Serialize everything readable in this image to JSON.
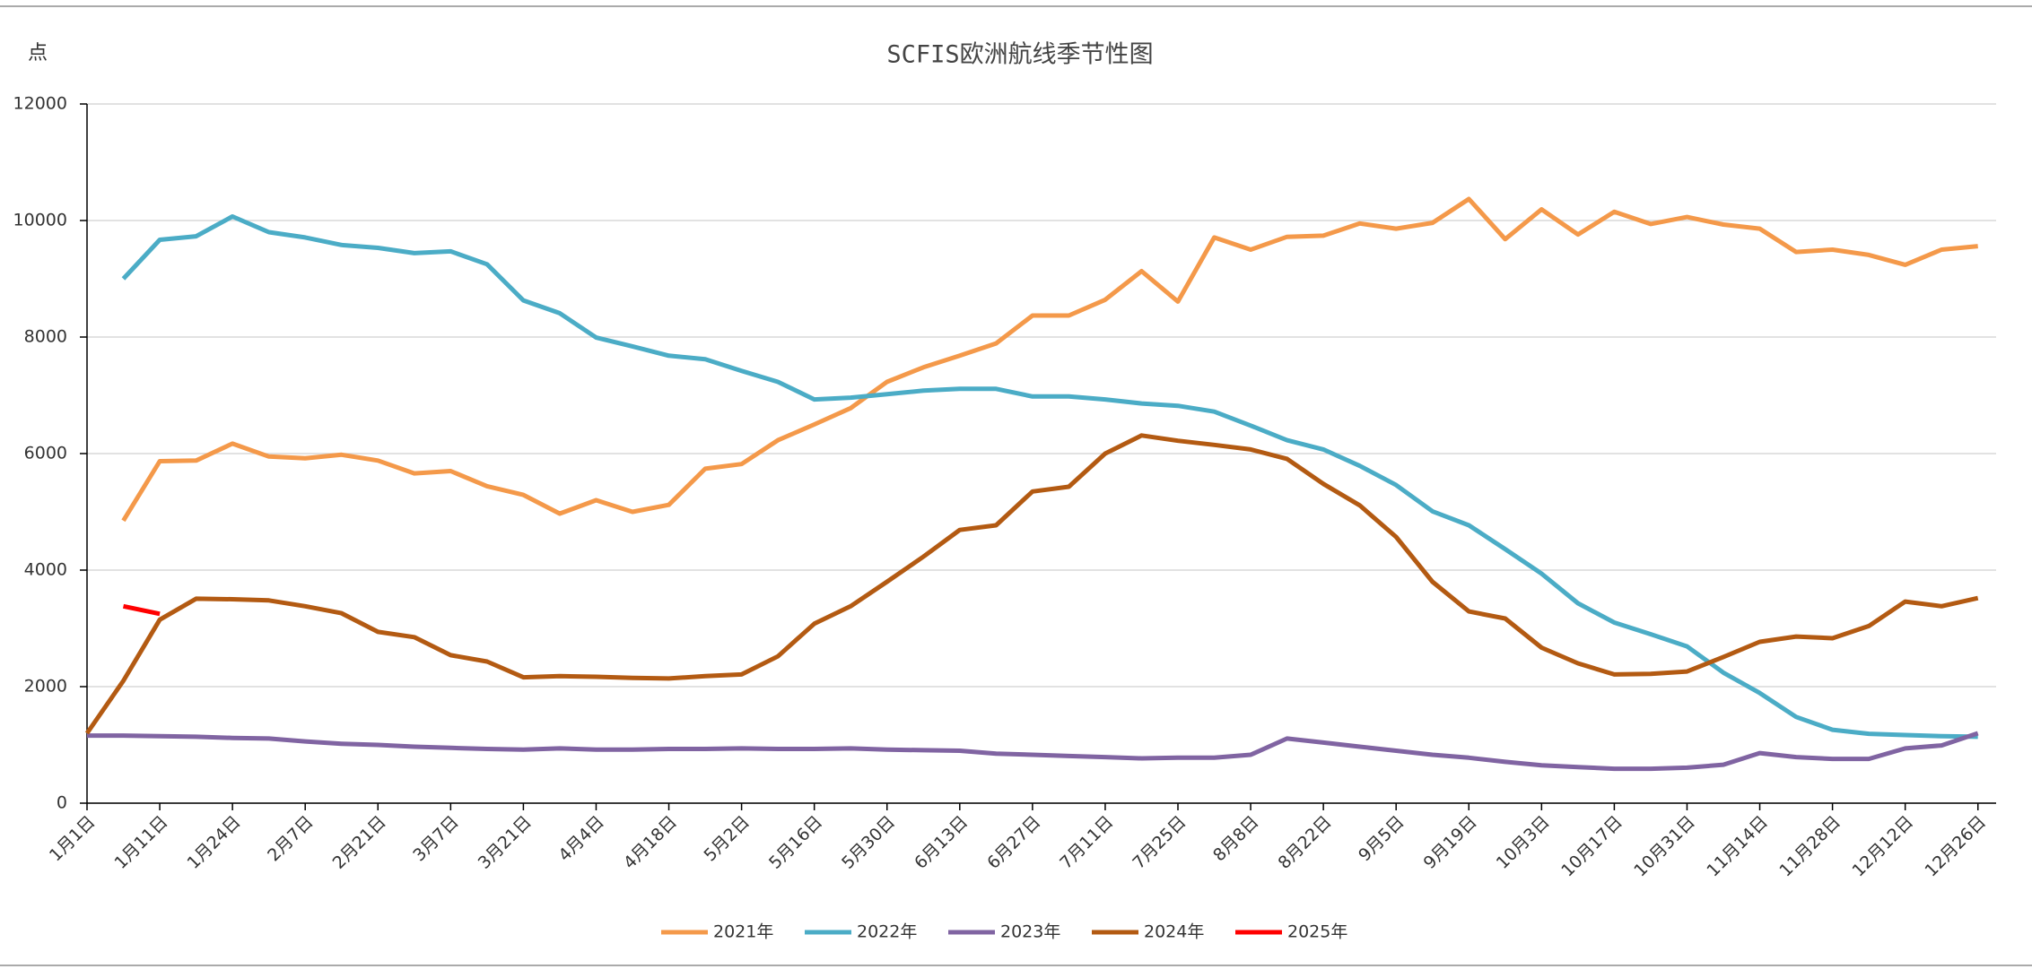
{
  "chart_data": {
    "type": "line",
    "title": "SCFIS欧洲航线季节性图",
    "y_label": "点",
    "categories": [
      "1月1日",
      null,
      "1月11日",
      null,
      "1月24日",
      null,
      "2月7日",
      null,
      "2月21日",
      null,
      "3月7日",
      null,
      "3月21日",
      null,
      "4月4日",
      null,
      "4月18日",
      null,
      "5月2日",
      null,
      "5月16日",
      null,
      "5月30日",
      null,
      "6月13日",
      null,
      "6月27日",
      null,
      "7月11日",
      null,
      "7月25日",
      null,
      "8月8日",
      null,
      "8月22日",
      null,
      "9月5日",
      null,
      "9月19日",
      null,
      "10月3日",
      null,
      "10月17日",
      null,
      "10月31日",
      null,
      "11月14日",
      null,
      "11月28日",
      null,
      "12月12日",
      null,
      "12月26日"
    ],
    "series": [
      {
        "name": "2021年",
        "color": "#f4994a",
        "values": [
          null,
          4850,
          5870,
          5880,
          6170,
          5950,
          5920,
          5980,
          5880,
          5660,
          5700,
          5440,
          5290,
          4970,
          5200,
          5000,
          5120,
          5740,
          5820,
          6230,
          6500,
          6780,
          7230,
          7480,
          7680,
          7890,
          8370,
          8370,
          8640,
          9130,
          8610,
          9710,
          9500,
          9720,
          9740,
          9950,
          9860,
          9960,
          10370,
          9680,
          10190,
          9760,
          10150,
          9940,
          10060,
          9930,
          9860,
          9460,
          9500,
          9410,
          9240,
          9500,
          9560
        ]
      },
      {
        "name": "2022年",
        "color": "#4bacc6",
        "values": [
          null,
          9000,
          9670,
          9730,
          10070,
          9800,
          9710,
          9580,
          9530,
          9440,
          9470,
          9250,
          8630,
          8410,
          7990,
          7840,
          7680,
          7620,
          7420,
          7230,
          6930,
          6960,
          7020,
          7080,
          7110,
          7110,
          6980,
          6980,
          6930,
          6860,
          6820,
          6720,
          6480,
          6230,
          6070,
          5790,
          5460,
          5010,
          4770,
          4360,
          3940,
          3430,
          3100,
          2900,
          2690,
          2240,
          1890,
          1480,
          1260,
          1190,
          1170,
          1150,
          1140
        ]
      },
      {
        "name": "2023年",
        "color": "#8064a2",
        "values": [
          1160,
          1160,
          1150,
          1140,
          1120,
          1110,
          1060,
          1020,
          1000,
          970,
          950,
          930,
          920,
          940,
          920,
          920,
          930,
          930,
          940,
          930,
          930,
          940,
          920,
          910,
          900,
          850,
          830,
          810,
          790,
          770,
          780,
          780,
          830,
          1110,
          1040,
          970,
          900,
          830,
          780,
          710,
          650,
          620,
          590,
          590,
          610,
          660,
          860,
          790,
          760,
          760,
          940,
          990,
          1200
        ]
      },
      {
        "name": "2024年",
        "color": "#b35a12",
        "values": [
          1200,
          2100,
          3150,
          3510,
          3500,
          3480,
          3380,
          3260,
          2940,
          2850,
          2540,
          2430,
          2160,
          2180,
          2170,
          2150,
          2140,
          2180,
          2210,
          2520,
          3080,
          3380,
          3800,
          4230,
          4690,
          4770,
          5350,
          5430,
          6000,
          6310,
          6220,
          6150,
          6070,
          5910,
          5480,
          5110,
          4570,
          3800,
          3290,
          3170,
          2670,
          2400,
          2210,
          2220,
          2260,
          2510,
          2770,
          2860,
          2830,
          3040,
          3460,
          3380,
          3520
        ]
      },
      {
        "name": "2025年",
        "color": "#ff0000",
        "values": [
          null,
          3380,
          3250,
          null,
          null,
          null,
          null,
          null,
          null,
          null,
          null,
          null,
          null,
          null,
          null,
          null,
          null,
          null,
          null,
          null,
          null,
          null,
          null,
          null,
          null,
          null,
          null,
          null,
          null,
          null,
          null,
          null,
          null,
          null,
          null,
          null,
          null,
          null,
          null,
          null,
          null,
          null,
          null,
          null,
          null,
          null,
          null,
          null,
          null,
          null,
          null,
          null,
          null
        ]
      }
    ],
    "ylim": [
      0,
      12000
    ],
    "yticks": [
      0,
      2000,
      4000,
      6000,
      8000,
      10000,
      12000
    ],
    "grid": true,
    "legend": "bottom"
  }
}
